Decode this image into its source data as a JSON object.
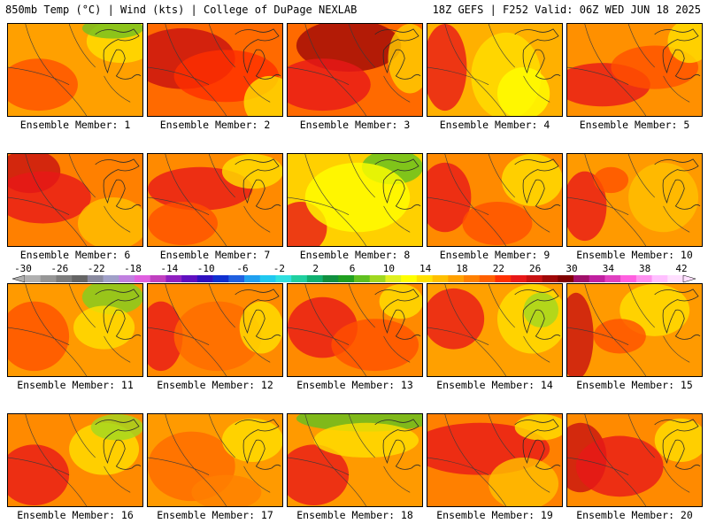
{
  "header": {
    "left": "850mb Temp (°C) | Wind (kts) | College of DuPage NEXLAB",
    "right": "18Z GEFS | F252 Valid: 06Z WED JUN 18 2025"
  },
  "colorbar": {
    "labels": [
      "-30",
      "-26",
      "-22",
      "-18",
      "-14",
      "-10",
      "-6",
      "-2",
      "2",
      "6",
      "10",
      "14",
      "18",
      "22",
      "26",
      "30",
      "34",
      "38",
      "42"
    ],
    "colors": [
      "#b0b0b0",
      "#969696",
      "#7d7d7d",
      "#656565",
      "#8a8aa0",
      "#a0a0c8",
      "#c080e0",
      "#e060e0",
      "#c040c0",
      "#9020c0",
      "#6010c0",
      "#3010c0",
      "#1030d0",
      "#2060e0",
      "#20a0f0",
      "#20c8f0",
      "#30e0e0",
      "#20d0a0",
      "#10b070",
      "#109040",
      "#20a020",
      "#60c020",
      "#a0d820",
      "#e0f020",
      "#ffff00",
      "#ffe000",
      "#ffc000",
      "#ffa000",
      "#ff8000",
      "#ff6000",
      "#ff3000",
      "#e81818",
      "#c81010",
      "#a00808",
      "#800000",
      "#a0106a",
      "#c020a0",
      "#e040c0",
      "#ff60e0",
      "#ff90f0",
      "#ffc0ff",
      "#ffe0ff"
    ]
  },
  "members": [
    {
      "label": "Ensemble Member: 1"
    },
    {
      "label": "Ensemble Member: 2"
    },
    {
      "label": "Ensemble Member: 3"
    },
    {
      "label": "Ensemble Member: 4"
    },
    {
      "label": "Ensemble Member: 5"
    },
    {
      "label": "Ensemble Member: 6"
    },
    {
      "label": "Ensemble Member: 7"
    },
    {
      "label": "Ensemble Member: 8"
    },
    {
      "label": "Ensemble Member: 9"
    },
    {
      "label": "Ensemble Member: 10"
    },
    {
      "label": "Ensemble Member: 11"
    },
    {
      "label": "Ensemble Member: 12"
    },
    {
      "label": "Ensemble Member: 13"
    },
    {
      "label": "Ensemble Member: 14"
    },
    {
      "label": "Ensemble Member: 15"
    },
    {
      "label": "Ensemble Member: 16"
    },
    {
      "label": "Ensemble Member: 17"
    },
    {
      "label": "Ensemble Member: 18"
    },
    {
      "label": "Ensemble Member: 19"
    },
    {
      "label": "Ensemble Member: 20"
    }
  ]
}
